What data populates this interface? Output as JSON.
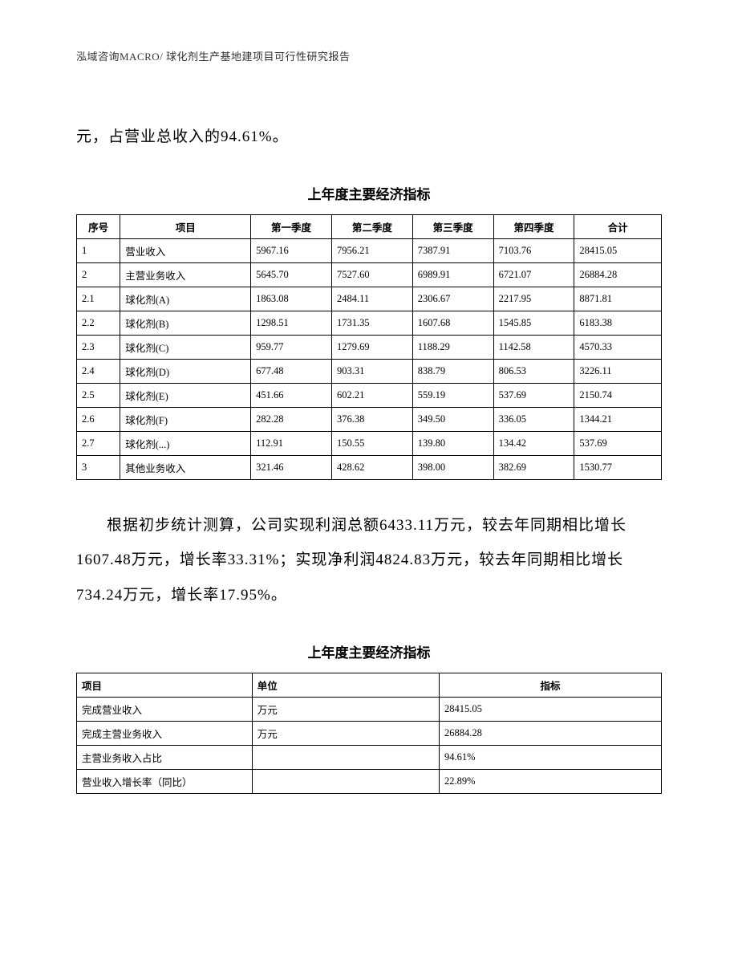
{
  "header": {
    "text": "泓域咨询MACRO/    球化剂生产基地建项目可行性研究报告"
  },
  "paragraph1": "元，占营业总收入的94.61%。",
  "table1": {
    "title": "上年度主要经济指标",
    "columns": [
      "序号",
      "项目",
      "第一季度",
      "第二季度",
      "第三季度",
      "第四季度",
      "合计"
    ],
    "rows": [
      [
        "1",
        "营业收入",
        "5967.16",
        "7956.21",
        "7387.91",
        "7103.76",
        "28415.05"
      ],
      [
        "2",
        "主营业务收入",
        "5645.70",
        "7527.60",
        "6989.91",
        "6721.07",
        "26884.28"
      ],
      [
        "2.1",
        "球化剂(A)",
        "1863.08",
        "2484.11",
        "2306.67",
        "2217.95",
        "8871.81"
      ],
      [
        "2.2",
        "球化剂(B)",
        "1298.51",
        "1731.35",
        "1607.68",
        "1545.85",
        "6183.38"
      ],
      [
        "2.3",
        "球化剂(C)",
        "959.77",
        "1279.69",
        "1188.29",
        "1142.58",
        "4570.33"
      ],
      [
        "2.4",
        "球化剂(D)",
        "677.48",
        "903.31",
        "838.79",
        "806.53",
        "3226.11"
      ],
      [
        "2.5",
        "球化剂(E)",
        "451.66",
        "602.21",
        "559.19",
        "537.69",
        "2150.74"
      ],
      [
        "2.6",
        "球化剂(F)",
        "282.28",
        "376.38",
        "349.50",
        "336.05",
        "1344.21"
      ],
      [
        "2.7",
        "球化剂(...)",
        "112.91",
        "150.55",
        "139.80",
        "134.42",
        "537.69"
      ],
      [
        "3",
        "其他业务收入",
        "321.46",
        "428.62",
        "398.00",
        "382.69",
        "1530.77"
      ]
    ]
  },
  "paragraph2": "根据初步统计测算，公司实现利润总额6433.11万元，较去年同期相比增长1607.48万元，增长率33.31%；实现净利润4824.83万元，较去年同期相比增长734.24万元，增长率17.95%。",
  "table2": {
    "title": "上年度主要经济指标",
    "columns": [
      "项目",
      "单位",
      "指标"
    ],
    "rows": [
      [
        "完成营业收入",
        "万元",
        "28415.05"
      ],
      [
        "完成主营业务收入",
        "万元",
        "26884.28"
      ],
      [
        "主营业务收入占比",
        "",
        "94.61%"
      ],
      [
        "营业收入增长率（同比）",
        "",
        "22.89%"
      ]
    ]
  }
}
